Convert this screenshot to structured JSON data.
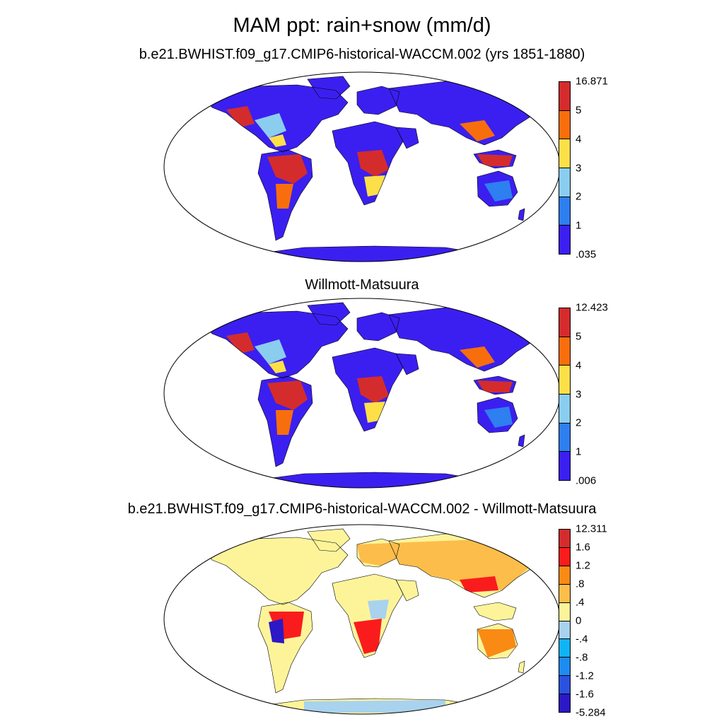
{
  "title": "MAM ppt: rain+snow (mm/d)",
  "panels": [
    {
      "title": "b.e21.BWHIST.f09_g17.CMIP6-historical-WACCM.002 (yrs 1851-1880)",
      "colorbar_labels": [
        "16.871",
        "5",
        "4",
        "3",
        "2",
        "1",
        ".035"
      ],
      "colors": [
        "#d42c2c",
        "#f96e0c",
        "#fde048",
        "#8bcdee",
        "#2e7ff0",
        "#3b1ff0"
      ]
    },
    {
      "title": "Willmott-Matsuura",
      "colorbar_labels": [
        "12.423",
        "5",
        "4",
        "3",
        "2",
        "1",
        ".006"
      ],
      "colors": [
        "#d42c2c",
        "#f96e0c",
        "#fde048",
        "#8bcdee",
        "#2e7ff0",
        "#3b1ff0"
      ]
    },
    {
      "title": "b.e21.BWHIST.f09_g17.CMIP6-historical-WACCM.002 - Willmott-Matsuura",
      "colorbar_labels": [
        "12.311",
        "1.6",
        "1.2",
        ".8",
        ".4",
        "0",
        "-.4",
        "-.8",
        "-1.2",
        "-1.6",
        "-5.284"
      ],
      "colors": [
        "#d42c2c",
        "#fa1c1c",
        "#f98a14",
        "#fdbd4a",
        "#fdf49a",
        "#a8d2ee",
        "#0fb4f4",
        "#1c8cf0",
        "#2a52e0",
        "#2c18c6"
      ]
    }
  ]
}
